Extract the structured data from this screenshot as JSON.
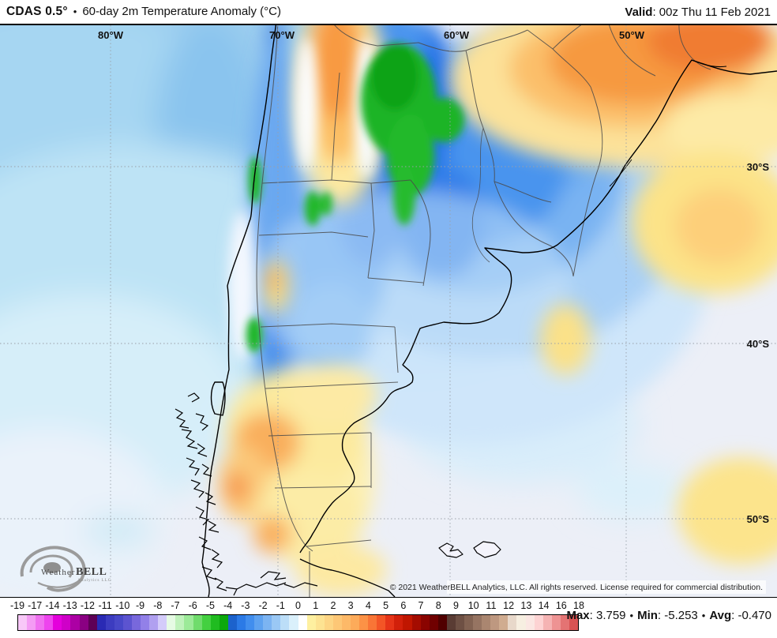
{
  "header": {
    "model": "CDAS 0.5°",
    "separator": "•",
    "title": "60-day 2m Temperature Anomaly (°C)",
    "valid_label": "Valid",
    "valid_value": ": 00z Thu 11 Feb 2021"
  },
  "map": {
    "grid_top": [
      "80°W",
      "70°W",
      "60°W",
      "50°W"
    ],
    "grid_right": [
      "30°S",
      "40°S",
      "50°S"
    ],
    "copyright": "© 2021 WeatherBELL Analytics, LLC. All rights reserved. License required for commercial distribution.",
    "logo": {
      "weather": "Weather",
      "bell": "BELL",
      "sub": "Analytics LLC"
    }
  },
  "colorbar": {
    "ticks": [
      "-19",
      "-17",
      "-14",
      "-13",
      "-12",
      "-11",
      "-10",
      "-9",
      "-8",
      "-7",
      "-6",
      "-5",
      "-4",
      "-3",
      "-2",
      "-1",
      "0",
      "1",
      "2",
      "3",
      "4",
      "5",
      "6",
      "7",
      "8",
      "9",
      "10",
      "11",
      "12",
      "13",
      "14",
      "16",
      "18"
    ],
    "colors": [
      "#f8c8f8",
      "#f49cf4",
      "#f070f0",
      "#ee44ee",
      "#e400dc",
      "#cf00c8",
      "#ac00a4",
      "#8a0082",
      "#5e0056",
      "#2a2ab4",
      "#3c3cc0",
      "#4848c8",
      "#5c54d0",
      "#7868dc",
      "#9280e8",
      "#b0a0f0",
      "#d4ccfa",
      "#e6fbe4",
      "#c0f2bc",
      "#9cea98",
      "#70dc6c",
      "#44d040",
      "#20bc20",
      "#0ca80c",
      "#1c62cc",
      "#2b7ae6",
      "#418eee",
      "#5ea2f0",
      "#7cb4f2",
      "#9ac8f5",
      "#bcdef8",
      "#daf0fb",
      "#ffffff",
      "#fef0a0",
      "#fde392",
      "#fdd584",
      "#fdc776",
      "#fdb968",
      "#fdab5a",
      "#fc9246",
      "#f97536",
      "#f35526",
      "#e63418",
      "#d2200a",
      "#c01600",
      "#a40c00",
      "#8a0400",
      "#700000",
      "#500000",
      "#5a3c34",
      "#6e5044",
      "#826252",
      "#967462",
      "#aa8670",
      "#be9880",
      "#d0ac90",
      "#e8d8ca",
      "#f7efe1",
      "#fbe7e3",
      "#fdd3d3",
      "#f5b3b3",
      "#ee9393",
      "#e47373",
      "#d95353"
    ]
  },
  "stats": {
    "max_label": "Max",
    "max_value": ": 3.759",
    "min_label": "Min",
    "min_value": ": -5.253",
    "avg_label": "Avg",
    "avg_value": ": -0.470",
    "bullet": "•"
  }
}
